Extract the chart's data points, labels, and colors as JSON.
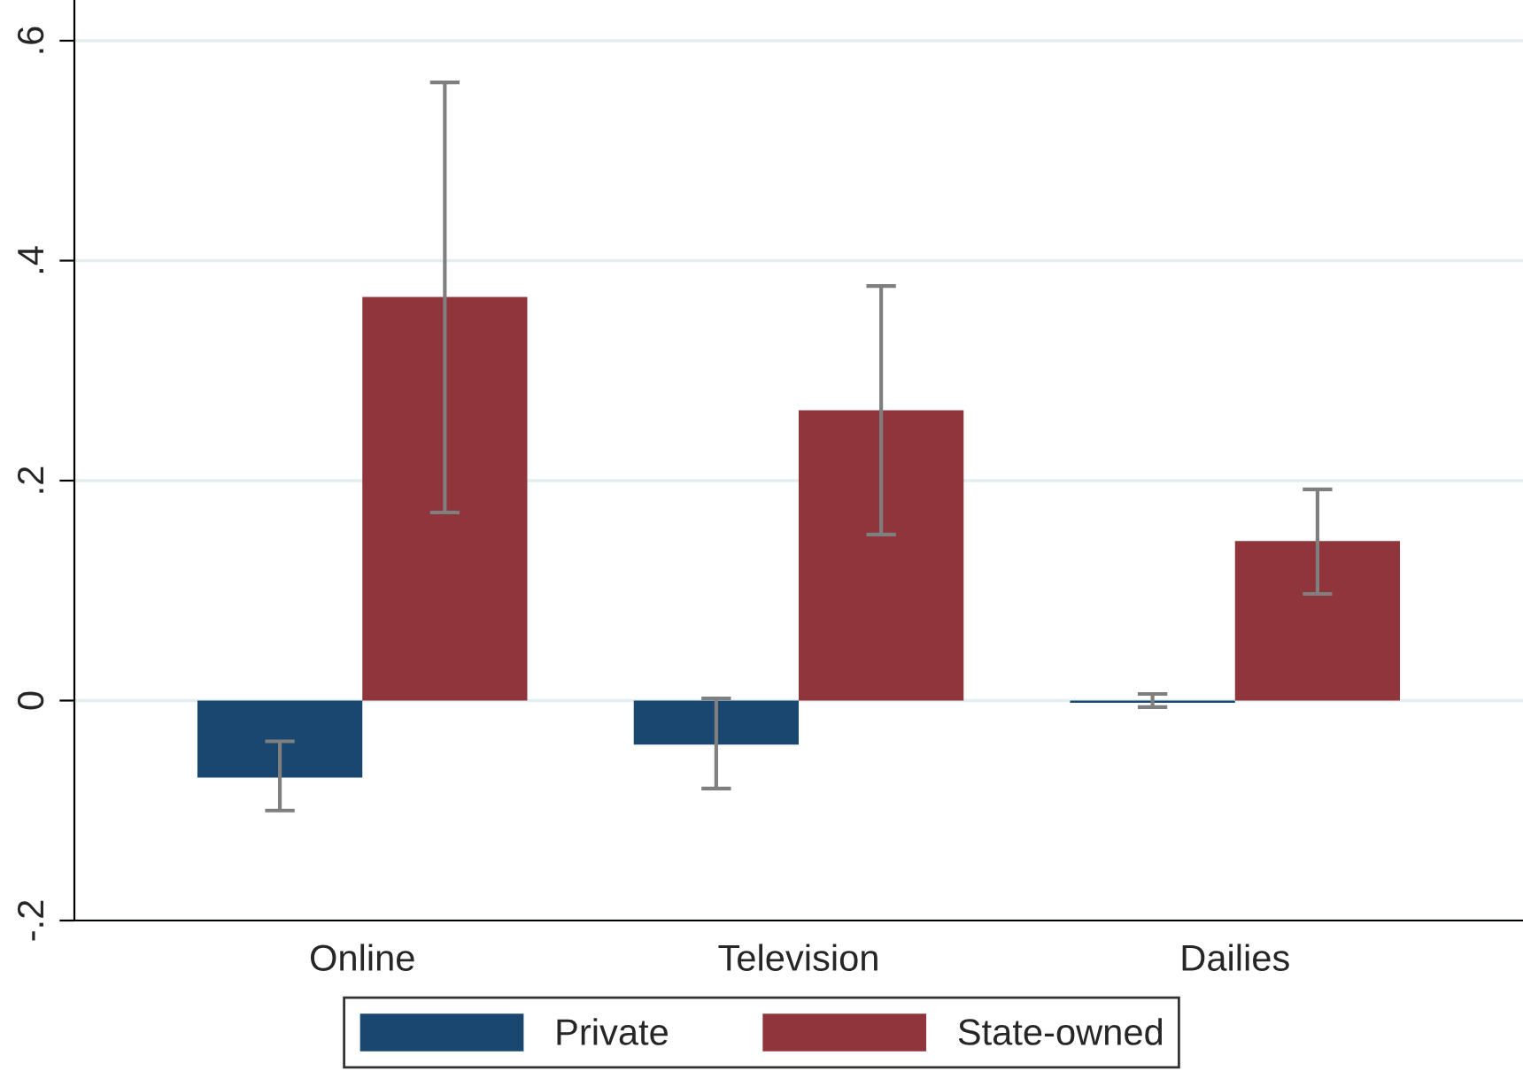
{
  "chart_data": {
    "type": "bar",
    "categories": [
      "Online",
      "Television",
      "Dailies"
    ],
    "series": [
      {
        "name": "Private",
        "color": "#1a476f",
        "values": [
          -0.07,
          -0.04,
          -0.002
        ],
        "errors": [
          [
            -0.1,
            -0.037
          ],
          [
            -0.08,
            0.002
          ],
          [
            -0.006,
            0.006
          ]
        ]
      },
      {
        "name": "State-owned",
        "color": "#90353b",
        "values": [
          0.367,
          0.264,
          0.145
        ],
        "errors": [
          [
            0.171,
            0.562
          ],
          [
            0.151,
            0.377
          ],
          [
            0.097,
            0.192
          ]
        ]
      }
    ],
    "ylim": [
      -0.2,
      0.637
    ],
    "yticks": [
      {
        "value": -0.2,
        "label": "-.2"
      },
      {
        "value": 0,
        "label": "0"
      },
      {
        "value": 0.2,
        "label": ".2"
      },
      {
        "value": 0.4,
        "label": ".4"
      },
      {
        "value": 0.6,
        "label": ".6"
      }
    ],
    "grid": "y",
    "legend": "bottom"
  }
}
